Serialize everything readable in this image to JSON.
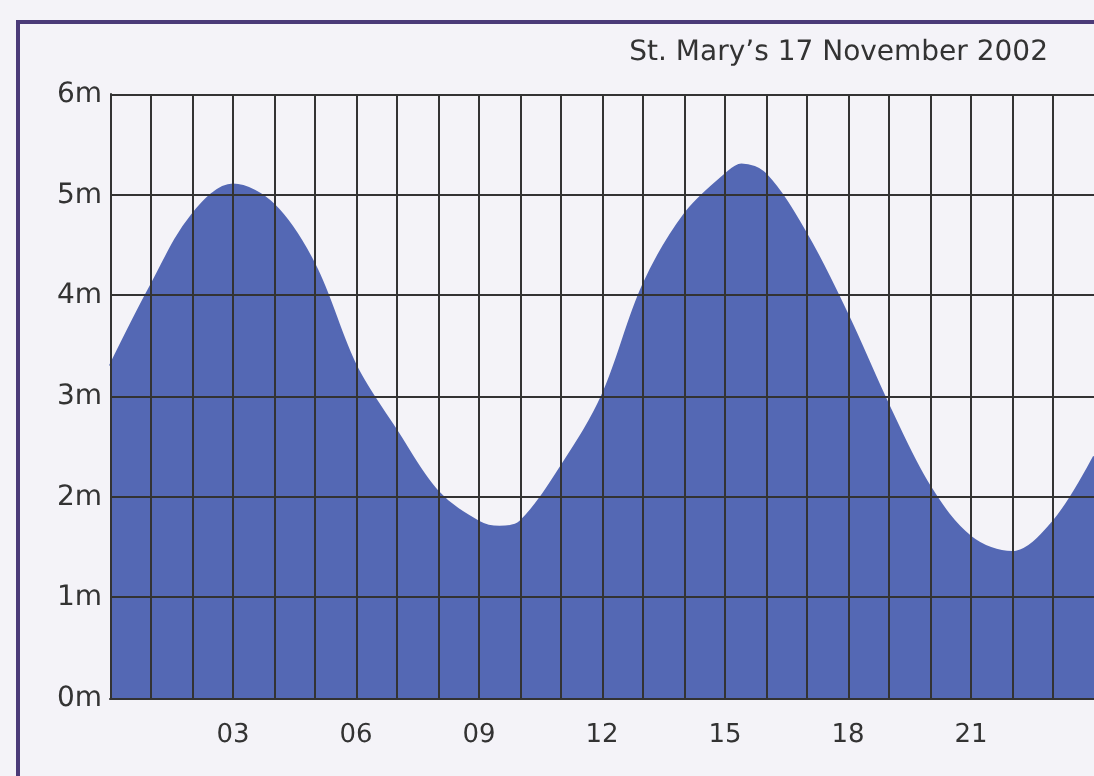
{
  "chart_data": {
    "type": "area",
    "title": "St. Mary’s 17 November 2002",
    "x": [
      0,
      1,
      2,
      3,
      4,
      5,
      6,
      7,
      8,
      9,
      9.5,
      10,
      11,
      12,
      13,
      14,
      15,
      15.4,
      16,
      17,
      18,
      19,
      20,
      21,
      22,
      23,
      24
    ],
    "series": [
      {
        "color": "#5468b4",
        "values": [
          3.3,
          4.1,
          4.8,
          5.1,
          4.9,
          4.3,
          3.3,
          2.65,
          2.05,
          1.75,
          1.7,
          1.75,
          2.3,
          3.0,
          4.1,
          4.8,
          5.2,
          5.3,
          5.2,
          4.6,
          3.8,
          2.9,
          2.1,
          1.6,
          1.45,
          1.75,
          2.4
        ]
      }
    ],
    "xlim": [
      0,
      24
    ],
    "xticks": [
      {
        "value": 1,
        "label": null
      },
      {
        "value": 2,
        "label": null
      },
      {
        "value": 3,
        "label": "03"
      },
      {
        "value": 4,
        "label": null
      },
      {
        "value": 5,
        "label": null
      },
      {
        "value": 6,
        "label": "06"
      },
      {
        "value": 7,
        "label": null
      },
      {
        "value": 8,
        "label": null
      },
      {
        "value": 9,
        "label": "09"
      },
      {
        "value": 10,
        "label": null
      },
      {
        "value": 11,
        "label": null
      },
      {
        "value": 12,
        "label": "12"
      },
      {
        "value": 13,
        "label": null
      },
      {
        "value": 14,
        "label": null
      },
      {
        "value": 15,
        "label": "15"
      },
      {
        "value": 16,
        "label": null
      },
      {
        "value": 17,
        "label": null
      },
      {
        "value": 18,
        "label": "18"
      },
      {
        "value": 19,
        "label": null
      },
      {
        "value": 20,
        "label": null
      },
      {
        "value": 21,
        "label": "21"
      },
      {
        "value": 22,
        "label": null
      },
      {
        "value": 23,
        "label": null
      }
    ],
    "ylim": [
      0,
      6
    ],
    "yticks": [
      {
        "value": 0,
        "label": "0m"
      },
      {
        "value": 1,
        "label": "1m"
      },
      {
        "value": 2,
        "label": "2m"
      },
      {
        "value": 3,
        "label": "3m"
      },
      {
        "value": 4,
        "label": "4m"
      },
      {
        "value": 5,
        "label": "5m"
      },
      {
        "value": 6,
        "label": "6m"
      }
    ],
    "grid": true,
    "marker": "none"
  }
}
